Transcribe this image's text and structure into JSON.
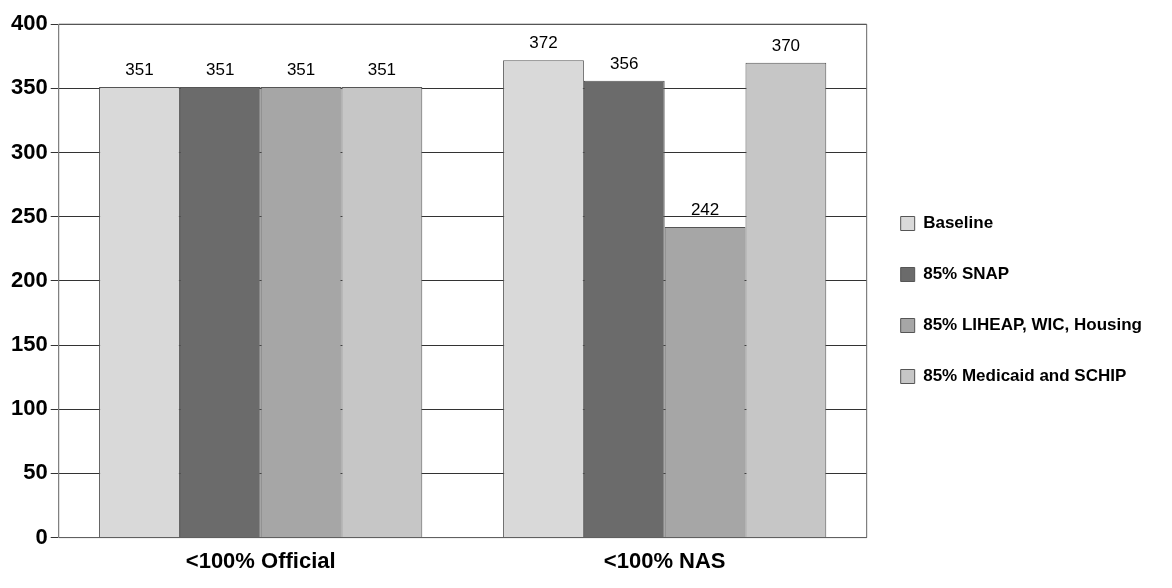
{
  "chart_data": {
    "type": "bar",
    "categories": [
      "<100% Official",
      "<100% NAS"
    ],
    "series": [
      {
        "name": "Baseline",
        "color": "#d9d9d9",
        "values": [
          351,
          372
        ]
      },
      {
        "name": "85% SNAP",
        "color": "#6b6b6b",
        "values": [
          351,
          356
        ]
      },
      {
        "name": "85% LIHEAP, WIC, Housing",
        "color": "#a6a6a6",
        "values": [
          351,
          242
        ]
      },
      {
        "name": "85% Medicaid and SCHIP",
        "color": "#c6c6c6",
        "values": [
          351,
          370
        ]
      }
    ],
    "ylim": [
      0,
      400
    ],
    "yticks": [
      0,
      50,
      100,
      150,
      200,
      250,
      300,
      350,
      400
    ],
    "grid": "y",
    "legend": "right",
    "data_labels": true
  }
}
